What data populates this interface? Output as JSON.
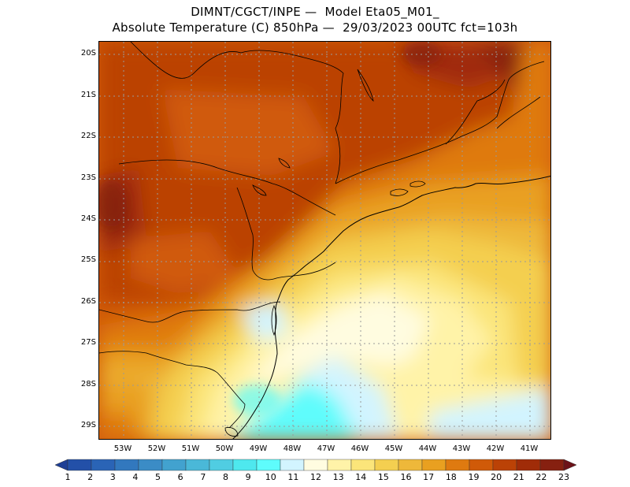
{
  "title": {
    "line1": "DIMNT/CGCT/INPE —  Model Eta05_M01_",
    "line2": "Absolute Temperature (C) 850hPa —  29/03/2023 00UTC fct=103h"
  },
  "lat_labels": [
    "20S",
    "21S",
    "22S",
    "23S",
    "24S",
    "25S",
    "26S",
    "27S",
    "28S",
    "29S"
  ],
  "lon_labels": [
    "53W",
    "52W",
    "51W",
    "50W",
    "49W",
    "48W",
    "47W",
    "46W",
    "45W",
    "44W",
    "43W",
    "42W",
    "41W"
  ],
  "colorbar": {
    "labels": [
      "1",
      "2",
      "3",
      "4",
      "5",
      "6",
      "7",
      "8",
      "9",
      "10",
      "11",
      "12",
      "13",
      "14",
      "15",
      "16",
      "17",
      "18",
      "19",
      "20",
      "21",
      "22",
      "23"
    ],
    "colors": [
      "#1e3f96",
      "#2350a8",
      "#2a64b6",
      "#3278be",
      "#3b8cc6",
      "#42a2cf",
      "#4ab8d8",
      "#50cde2",
      "#4ee8ee",
      "#5efcfc",
      "#d2f4ff",
      "#fffce0",
      "#fff3a8",
      "#fbe57a",
      "#f4cf50",
      "#eeb83a",
      "#e9a020",
      "#df7a10",
      "#d05a08",
      "#bb4206",
      "#a02c08",
      "#862010",
      "#6c1218"
    ]
  },
  "map": {
    "lon_range": [
      -53.75,
      -40.25
    ],
    "lat_range": [
      -29.45,
      -19.8
    ]
  }
}
